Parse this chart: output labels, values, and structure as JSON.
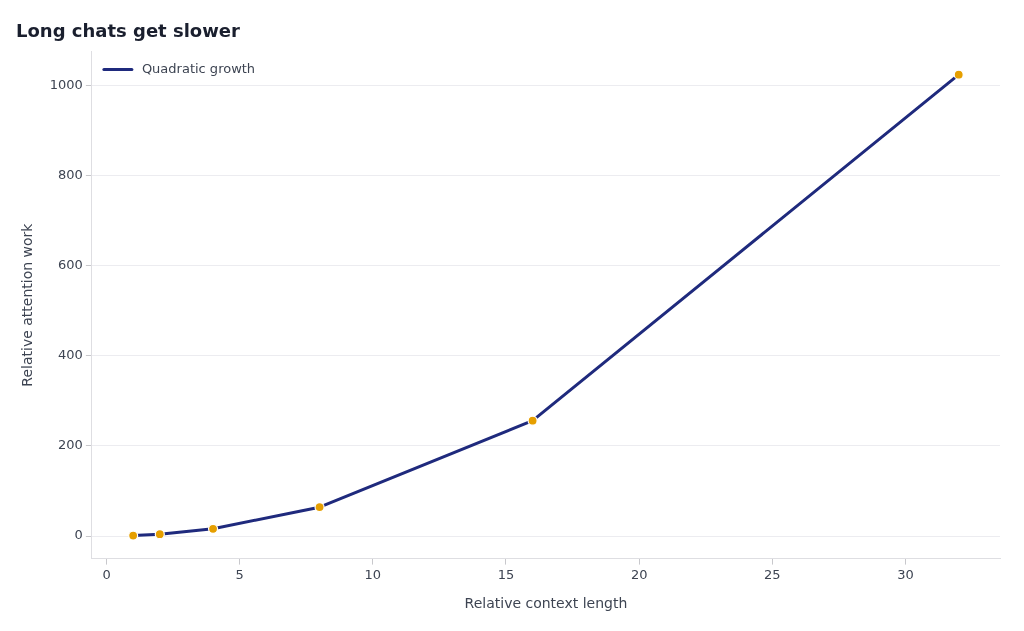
{
  "chart_data": {
    "type": "line",
    "title": "Long chats get slower",
    "xlabel": "Relative context length",
    "ylabel": "Relative attention work",
    "x": [
      1,
      2,
      4,
      8,
      16,
      32
    ],
    "series": [
      {
        "name": "Quadratic growth",
        "color": "#1f2a7d",
        "marker": "none",
        "line_style": "solid",
        "values": [
          1,
          4,
          16,
          64,
          256,
          1024
        ]
      },
      {
        "type": "scatter",
        "color": "#e69f00",
        "marker": "circle",
        "values": [
          1,
          4,
          16,
          64,
          256,
          1024
        ]
      }
    ],
    "xlim": [
      -0.55,
      33.55
    ],
    "xticks": [
      0,
      5,
      10,
      15,
      20,
      25,
      30
    ],
    "ylim": [
      -50.15,
      1075.15
    ],
    "yticks": [
      0,
      200,
      400,
      600,
      800,
      1000
    ],
    "grid": "y",
    "legend": "top left"
  }
}
